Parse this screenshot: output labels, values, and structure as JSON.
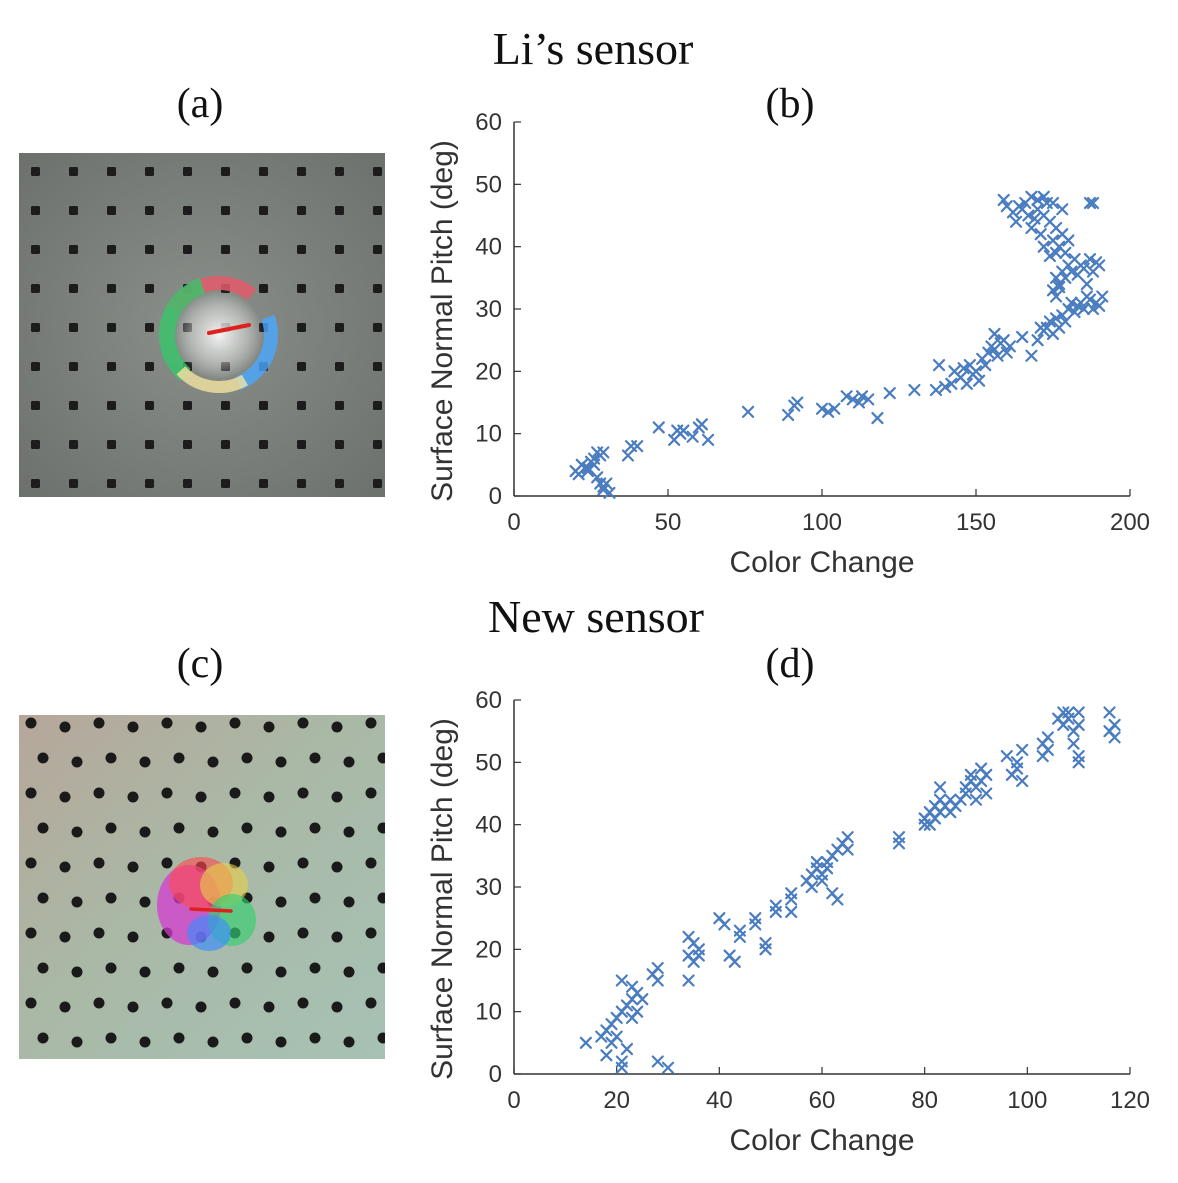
{
  "figure": {
    "top_title": "Li’s sensor",
    "bottom_title": "New sensor",
    "panels": {
      "a": "(a)",
      "b": "(b)",
      "c": "(c)",
      "d": "(d)"
    }
  },
  "images": {
    "a": {
      "description_icon": "sensor-photo-icon",
      "marker_color": "#e0201c"
    },
    "c": {
      "description_icon": "sensor-photo-icon",
      "marker_color": "#e0201c"
    }
  },
  "chart_data": [
    {
      "id": "b",
      "type": "scatter",
      "title": "",
      "xlabel": "Color Change",
      "ylabel": "Surface Normal Pitch (deg)",
      "xlim": [
        0,
        200
      ],
      "ylim": [
        0,
        60
      ],
      "xticks": [
        0,
        50,
        100,
        150,
        200
      ],
      "yticks": [
        0,
        10,
        20,
        30,
        40,
        50,
        60
      ],
      "marker": "x",
      "color": "#4a7cc0",
      "series": [
        {
          "name": "Li's sensor",
          "points": [
            [
              20,
              4
            ],
            [
              21,
              3.5
            ],
            [
              22,
              5
            ],
            [
              23,
              4.5
            ],
            [
              24,
              4
            ],
            [
              25,
              5.5
            ],
            [
              26,
              6
            ],
            [
              27,
              7
            ],
            [
              28,
              6.5
            ],
            [
              29,
              7
            ],
            [
              27,
              3
            ],
            [
              28,
              2
            ],
            [
              29,
              1
            ],
            [
              30,
              2
            ],
            [
              29,
              1.5
            ],
            [
              31,
              0.5
            ],
            [
              26,
              5
            ],
            [
              24,
              4.5
            ],
            [
              37,
              6.5
            ],
            [
              38,
              8
            ],
            [
              40,
              8
            ],
            [
              47,
              11
            ],
            [
              52,
              9
            ],
            [
              53,
              10.5
            ],
            [
              54,
              10
            ],
            [
              55,
              10.5
            ],
            [
              58,
              9.5
            ],
            [
              60,
              11
            ],
            [
              61,
              11.5
            ],
            [
              63,
              9
            ],
            [
              76,
              13.5
            ],
            [
              89,
              13
            ],
            [
              91,
              14.5
            ],
            [
              92,
              15
            ],
            [
              100,
              14
            ],
            [
              102,
              13.5
            ],
            [
              104,
              14
            ],
            [
              108,
              16
            ],
            [
              110,
              15.5
            ],
            [
              112,
              15
            ],
            [
              113,
              16
            ],
            [
              115,
              15.5
            ],
            [
              118,
              12.5
            ],
            [
              122,
              16.5
            ],
            [
              130,
              17
            ],
            [
              137,
              17
            ],
            [
              138,
              21
            ],
            [
              140,
              17.5
            ],
            [
              142,
              18
            ],
            [
              143,
              20
            ],
            [
              145,
              19
            ],
            [
              146,
              20.5
            ],
            [
              147,
              18
            ],
            [
              148,
              21
            ],
            [
              149,
              19.5
            ],
            [
              150,
              20
            ],
            [
              151,
              18.5
            ],
            [
              152,
              22
            ],
            [
              153,
              21
            ],
            [
              154,
              23
            ],
            [
              155,
              24
            ],
            [
              156,
              23.5
            ],
            [
              157,
              22.5
            ],
            [
              158,
              24.5
            ],
            [
              159,
              25
            ],
            [
              160,
              23
            ],
            [
              161,
              24
            ],
            [
              156,
              26
            ],
            [
              165,
              25.5
            ],
            [
              168,
              22.5
            ],
            [
              170,
              25
            ],
            [
              171,
              27
            ],
            [
              172,
              26.5
            ],
            [
              173,
              27
            ],
            [
              174,
              28
            ],
            [
              175,
              26
            ],
            [
              176,
              28.5
            ],
            [
              177,
              27
            ],
            [
              178,
              29
            ],
            [
              179,
              28
            ],
            [
              180,
              30
            ],
            [
              181,
              31
            ],
            [
              182,
              29.5
            ],
            [
              183,
              30.5
            ],
            [
              184,
              31
            ],
            [
              185,
              30
            ],
            [
              186,
              32
            ],
            [
              187,
              31.5
            ],
            [
              188,
              30
            ],
            [
              189,
              31
            ],
            [
              190,
              30.5
            ],
            [
              191,
              32
            ],
            [
              175,
              33
            ],
            [
              176,
              35
            ],
            [
              177,
              34
            ],
            [
              178,
              36
            ],
            [
              179,
              35
            ],
            [
              180,
              37
            ],
            [
              181,
              36
            ],
            [
              182,
              38
            ],
            [
              183,
              35.5
            ],
            [
              184,
              37
            ],
            [
              185,
              36.5
            ],
            [
              186,
              34
            ],
            [
              187,
              38
            ],
            [
              188,
              36
            ],
            [
              189,
              37.5
            ],
            [
              190,
              37
            ],
            [
              163,
              44
            ],
            [
              165,
              46
            ],
            [
              167,
              45
            ],
            [
              168,
              43
            ],
            [
              169,
              44.5
            ],
            [
              170,
              46
            ],
            [
              171,
              42
            ],
            [
              172,
              45
            ],
            [
              173,
              47
            ],
            [
              174,
              44
            ],
            [
              175,
              41
            ],
            [
              176,
              43
            ],
            [
              177,
              40
            ],
            [
              178,
              42
            ],
            [
              179,
              39
            ],
            [
              180,
              41
            ],
            [
              172,
              40
            ],
            [
              174,
              38.5
            ],
            [
              176,
              39
            ],
            [
              159,
              47.5
            ],
            [
              160,
              46.5
            ],
            [
              162,
              45.5
            ],
            [
              164,
              46.5
            ],
            [
              166,
              47
            ],
            [
              168,
              48
            ],
            [
              170,
              47.5
            ],
            [
              172,
              48
            ],
            [
              175,
              47
            ],
            [
              178,
              46
            ],
            [
              187,
              47
            ],
            [
              188,
              47
            ],
            [
              176,
              32
            ],
            [
              177,
              33.5
            ]
          ]
        }
      ]
    },
    {
      "id": "d",
      "type": "scatter",
      "title": "",
      "xlabel": "Color Change",
      "ylabel": "Surface Normal Pitch (deg)",
      "xlim": [
        0,
        120
      ],
      "ylim": [
        0,
        60
      ],
      "xticks": [
        0,
        20,
        40,
        60,
        80,
        100,
        120
      ],
      "yticks": [
        0,
        10,
        20,
        30,
        40,
        50,
        60
      ],
      "marker": "x",
      "color": "#4a7cc0",
      "series": [
        {
          "name": "New sensor",
          "points": [
            [
              14,
              5
            ],
            [
              17,
              6
            ],
            [
              18,
              3
            ],
            [
              18,
              7
            ],
            [
              19,
              5
            ],
            [
              19,
              8
            ],
            [
              20,
              6
            ],
            [
              20,
              9
            ],
            [
              21,
              10
            ],
            [
              21,
              15
            ],
            [
              21,
              2
            ],
            [
              21,
              1
            ],
            [
              22,
              4
            ],
            [
              22,
              11
            ],
            [
              23,
              9
            ],
            [
              23,
              12
            ],
            [
              23,
              14
            ],
            [
              24,
              10
            ],
            [
              24,
              13
            ],
            [
              25,
              12
            ],
            [
              28,
              2
            ],
            [
              30,
              1
            ],
            [
              27,
              16
            ],
            [
              28,
              17
            ],
            [
              28,
              15
            ],
            [
              34,
              15
            ],
            [
              34,
              19
            ],
            [
              34,
              22
            ],
            [
              35,
              18
            ],
            [
              35,
              21
            ],
            [
              36,
              20
            ],
            [
              36,
              19
            ],
            [
              40,
              25
            ],
            [
              41,
              24
            ],
            [
              42,
              19
            ],
            [
              43,
              18
            ],
            [
              44,
              22
            ],
            [
              44,
              23
            ],
            [
              47,
              24
            ],
            [
              47,
              25
            ],
            [
              49,
              20
            ],
            [
              49,
              21
            ],
            [
              51,
              26
            ],
            [
              51,
              27
            ],
            [
              54,
              26
            ],
            [
              54,
              28
            ],
            [
              54,
              29
            ],
            [
              57,
              31
            ],
            [
              58,
              32
            ],
            [
              58,
              30
            ],
            [
              59,
              33
            ],
            [
              59,
              34
            ],
            [
              60,
              31
            ],
            [
              60,
              32
            ],
            [
              61,
              33
            ],
            [
              61,
              34
            ],
            [
              62,
              35
            ],
            [
              62,
              29
            ],
            [
              63,
              36
            ],
            [
              63,
              28
            ],
            [
              64,
              37
            ],
            [
              65,
              38
            ],
            [
              65,
              36
            ],
            [
              75,
              37
            ],
            [
              75,
              38
            ],
            [
              80,
              40
            ],
            [
              80,
              41
            ],
            [
              81,
              40
            ],
            [
              81,
              42
            ],
            [
              82,
              41
            ],
            [
              82,
              43
            ],
            [
              83,
              42
            ],
            [
              83,
              44
            ],
            [
              83,
              46
            ],
            [
              84,
              43
            ],
            [
              85,
              42
            ],
            [
              85,
              44
            ],
            [
              86,
              43
            ],
            [
              87,
              44
            ],
            [
              88,
              45
            ],
            [
              88,
              46
            ],
            [
              89,
              47
            ],
            [
              89,
              48
            ],
            [
              90,
              44
            ],
            [
              90,
              46
            ],
            [
              91,
              47
            ],
            [
              91,
              49
            ],
            [
              92,
              45
            ],
            [
              92,
              48
            ],
            [
              96,
              51
            ],
            [
              97,
              48
            ],
            [
              98,
              49
            ],
            [
              98,
              50
            ],
            [
              99,
              47
            ],
            [
              99,
              52
            ],
            [
              103,
              51
            ],
            [
              103,
              53
            ],
            [
              104,
              54
            ],
            [
              104,
              52
            ],
            [
              106,
              57
            ],
            [
              107,
              58
            ],
            [
              107,
              56
            ],
            [
              108,
              58
            ],
            [
              108,
              57
            ],
            [
              109,
              55
            ],
            [
              109,
              53
            ],
            [
              110,
              56
            ],
            [
              110,
              58
            ],
            [
              110,
              51
            ],
            [
              110,
              50
            ],
            [
              116,
              58
            ],
            [
              116,
              55
            ],
            [
              117,
              56
            ],
            [
              117,
              54
            ]
          ]
        }
      ]
    }
  ]
}
